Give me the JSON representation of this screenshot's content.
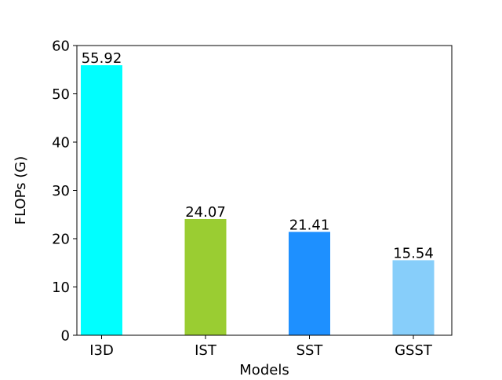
{
  "chart_data": {
    "type": "bar",
    "title": "",
    "xlabel": "Models",
    "ylabel": "FLOPs (G)",
    "categories": [
      "I3D",
      "IST",
      "SST",
      "GSST"
    ],
    "values": [
      55.92,
      24.07,
      21.41,
      15.54
    ],
    "value_labels": [
      "55.92",
      "24.07",
      "21.41",
      "15.54"
    ],
    "colors": [
      "#00ffff",
      "#9acd32",
      "#1e90ff",
      "#87cefa"
    ],
    "ylim": [
      0,
      60
    ],
    "yticks": [
      0,
      10,
      20,
      30,
      40,
      50,
      60
    ],
    "ytick_labels": [
      "0",
      "10",
      "20",
      "30",
      "40",
      "50",
      "60"
    ],
    "grid": false,
    "legend": "none"
  }
}
